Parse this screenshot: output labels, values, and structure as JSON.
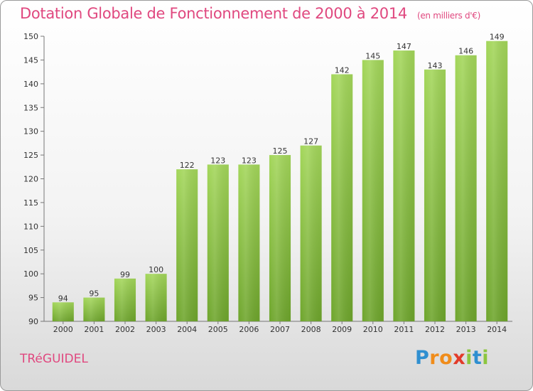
{
  "chart_data": {
    "type": "bar",
    "title": "Dotation Globale de Fonctionnement de 2000 à 2014",
    "subtitle": "(en milliers d'€)",
    "categories": [
      "2000",
      "2001",
      "2002",
      "2003",
      "2004",
      "2005",
      "2006",
      "2007",
      "2008",
      "2009",
      "2010",
      "2011",
      "2012",
      "2013",
      "2014"
    ],
    "values": [
      94,
      95,
      99,
      100,
      122,
      123,
      123,
      125,
      127,
      142,
      145,
      147,
      143,
      146,
      149
    ],
    "ylim": [
      90,
      150
    ],
    "yticks": [
      90,
      95,
      100,
      105,
      110,
      115,
      120,
      125,
      130,
      135,
      140,
      145,
      150
    ],
    "grid": false,
    "bar_color": "#8dc63f"
  },
  "commune": "TRéGUIDEL",
  "logo": {
    "letters": [
      {
        "char": "P",
        "color": "#2f8fd0"
      },
      {
        "char": "r",
        "color": "#f08c1a"
      },
      {
        "char": "o",
        "color": "#f08c1a"
      },
      {
        "char": "x",
        "color": "#e23b2a"
      },
      {
        "char": "i",
        "color": "#8cc63f"
      },
      {
        "char": "t",
        "color": "#2f8fd0"
      },
      {
        "char": "i",
        "color": "#8cc63f"
      }
    ]
  }
}
